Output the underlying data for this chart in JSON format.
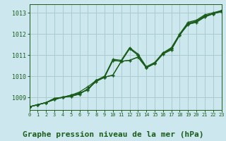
{
  "title": "Graphe pression niveau de la mer (hPa)",
  "background_color": "#cce8ee",
  "grid_color": "#aacccc",
  "line_color": "#1a5c1a",
  "marker_color": "#1a5c1a",
  "xlim": [
    0,
    23
  ],
  "ylim": [
    1008.4,
    1013.4
  ],
  "yticks": [
    1009,
    1010,
    1011,
    1012,
    1013
  ],
  "xticks": [
    0,
    1,
    2,
    3,
    4,
    5,
    6,
    7,
    8,
    9,
    10,
    11,
    12,
    13,
    14,
    15,
    16,
    17,
    18,
    19,
    20,
    21,
    22,
    23
  ],
  "series": [
    [
      1008.55,
      1008.65,
      1008.75,
      1008.9,
      1009.0,
      1009.05,
      1009.15,
      1009.4,
      1009.75,
      1009.95,
      1010.05,
      1010.7,
      1010.75,
      1010.9,
      1010.4,
      1010.6,
      1011.1,
      1011.3,
      1011.95,
      1012.5,
      1012.6,
      1012.85,
      1012.95,
      1013.1
    ],
    [
      1008.55,
      1008.65,
      1008.75,
      1008.9,
      1009.0,
      1009.05,
      1009.15,
      1009.4,
      1009.75,
      1009.95,
      1010.05,
      1010.7,
      1010.75,
      1010.9,
      1010.4,
      1010.6,
      1011.1,
      1011.3,
      1011.95,
      1012.5,
      1012.6,
      1012.85,
      1012.95,
      1013.1
    ],
    [
      1008.55,
      1008.65,
      1008.75,
      1008.95,
      1009.0,
      1009.1,
      1009.2,
      1009.35,
      1009.8,
      1009.95,
      1010.75,
      1010.7,
      1011.3,
      1011.0,
      1010.4,
      1010.6,
      1011.05,
      1011.25,
      1011.95,
      1012.45,
      1012.55,
      1012.8,
      1012.95,
      1013.05
    ],
    [
      1008.55,
      1008.65,
      1008.75,
      1008.95,
      1009.0,
      1009.1,
      1009.2,
      1009.35,
      1009.8,
      1009.95,
      1010.75,
      1010.7,
      1011.3,
      1011.0,
      1010.4,
      1010.6,
      1011.05,
      1011.25,
      1011.95,
      1012.45,
      1012.55,
      1012.8,
      1012.95,
      1013.05
    ]
  ],
  "series_special": [
    [
      1008.55,
      1008.65,
      1008.75,
      1008.9,
      1009.0,
      1009.1,
      1009.25,
      1009.5,
      1009.8,
      1010.0,
      1010.8,
      1010.75,
      1011.35,
      1011.05,
      1010.45,
      1010.65,
      1011.1,
      1011.35,
      1012.0,
      1012.55,
      1012.65,
      1012.9,
      1013.0,
      1013.1
    ]
  ],
  "spine_color": "#1a5c1a",
  "tick_color": "#1a5c1a",
  "label_color": "#1a5c1a",
  "title_color": "#1a5c1a",
  "fontsize_title": 8,
  "fontsize_ticks": 6
}
